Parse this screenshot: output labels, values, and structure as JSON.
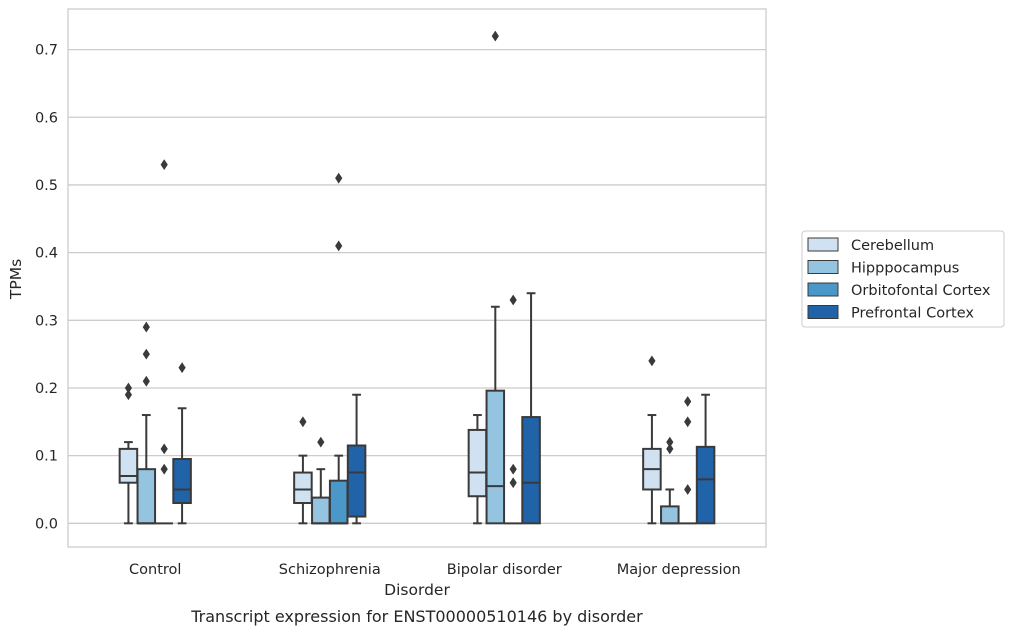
{
  "chart_data": {
    "type": "boxplot",
    "caption": "Transcript expression for ENST00000510146 by disorder",
    "xlabel": "Disorder",
    "ylabel": "TPMs",
    "ylim": [
      -0.035,
      0.76
    ],
    "yticks": [
      0.0,
      0.1,
      0.2,
      0.3,
      0.4,
      0.5,
      0.6,
      0.7
    ],
    "ytick_labels": [
      "0.0",
      "0.1",
      "0.2",
      "0.3",
      "0.4",
      "0.5",
      "0.6",
      "0.7"
    ],
    "grid": "horizontal",
    "legend_position": "right",
    "categories": [
      "Control",
      "Schizophrenia",
      "Bipolar disorder",
      "Major depression"
    ],
    "series": [
      {
        "name": "Cerebellum",
        "color": "#d0e1f2",
        "boxes": [
          {
            "whislo": 0.0,
            "q1": 0.06,
            "med": 0.07,
            "q3": 0.11,
            "whishi": 0.12,
            "fliers": [
              0.19,
              0.2
            ]
          },
          {
            "whislo": 0.0,
            "q1": 0.03,
            "med": 0.05,
            "q3": 0.075,
            "whishi": 0.1,
            "fliers": [
              0.15
            ]
          },
          {
            "whislo": 0.0,
            "q1": 0.04,
            "med": 0.075,
            "q3": 0.138,
            "whishi": 0.16,
            "fliers": []
          },
          {
            "whislo": 0.0,
            "q1": 0.05,
            "med": 0.08,
            "q3": 0.11,
            "whishi": 0.16,
            "fliers": [
              0.24
            ]
          }
        ]
      },
      {
        "name": "Hipppocampus",
        "color": "#94c4df",
        "boxes": [
          {
            "whislo": 0.0,
            "q1": 0.0,
            "med": 0.0,
            "q3": 0.08,
            "whishi": 0.16,
            "fliers": [
              0.21,
              0.25,
              0.29
            ]
          },
          {
            "whislo": 0.0,
            "q1": 0.0,
            "med": 0.0,
            "q3": 0.038,
            "whishi": 0.08,
            "fliers": [
              0.12
            ]
          },
          {
            "whislo": 0.0,
            "q1": 0.0,
            "med": 0.055,
            "q3": 0.196,
            "whishi": 0.32,
            "fliers": [
              0.72
            ]
          },
          {
            "whislo": 0.0,
            "q1": 0.0,
            "med": 0.0,
            "q3": 0.025,
            "whishi": 0.05,
            "fliers": [
              0.11,
              0.12
            ]
          }
        ]
      },
      {
        "name": "Orbitofontal Cortex",
        "color": "#4a98c9",
        "boxes": [
          {
            "whislo": 0.0,
            "q1": 0.0,
            "med": 0.0,
            "q3": 0.0,
            "whishi": 0.0,
            "fliers": [
              0.08,
              0.11,
              0.53
            ]
          },
          {
            "whislo": 0.0,
            "q1": 0.0,
            "med": 0.0,
            "q3": 0.063,
            "whishi": 0.1,
            "fliers": [
              0.41,
              0.51
            ]
          },
          {
            "whislo": 0.0,
            "q1": 0.0,
            "med": 0.0,
            "q3": 0.0,
            "whishi": 0.0,
            "fliers": [
              0.06,
              0.08,
              0.33
            ]
          },
          {
            "whislo": 0.0,
            "q1": 0.0,
            "med": 0.0,
            "q3": 0.0,
            "whishi": 0.0,
            "fliers": [
              0.05,
              0.15,
              0.18
            ]
          }
        ]
      },
      {
        "name": "Prefrontal Cortex",
        "color": "#2163a9",
        "boxes": [
          {
            "whislo": 0.0,
            "q1": 0.03,
            "med": 0.05,
            "q3": 0.095,
            "whishi": 0.17,
            "fliers": [
              0.23
            ]
          },
          {
            "whislo": 0.0,
            "q1": 0.01,
            "med": 0.075,
            "q3": 0.115,
            "whishi": 0.19,
            "fliers": []
          },
          {
            "whislo": 0.0,
            "q1": 0.0,
            "med": 0.06,
            "q3": 0.157,
            "whishi": 0.34,
            "fliers": []
          },
          {
            "whislo": 0.0,
            "q1": 0.0,
            "med": 0.065,
            "q3": 0.113,
            "whishi": 0.19,
            "fliers": []
          }
        ]
      }
    ]
  }
}
